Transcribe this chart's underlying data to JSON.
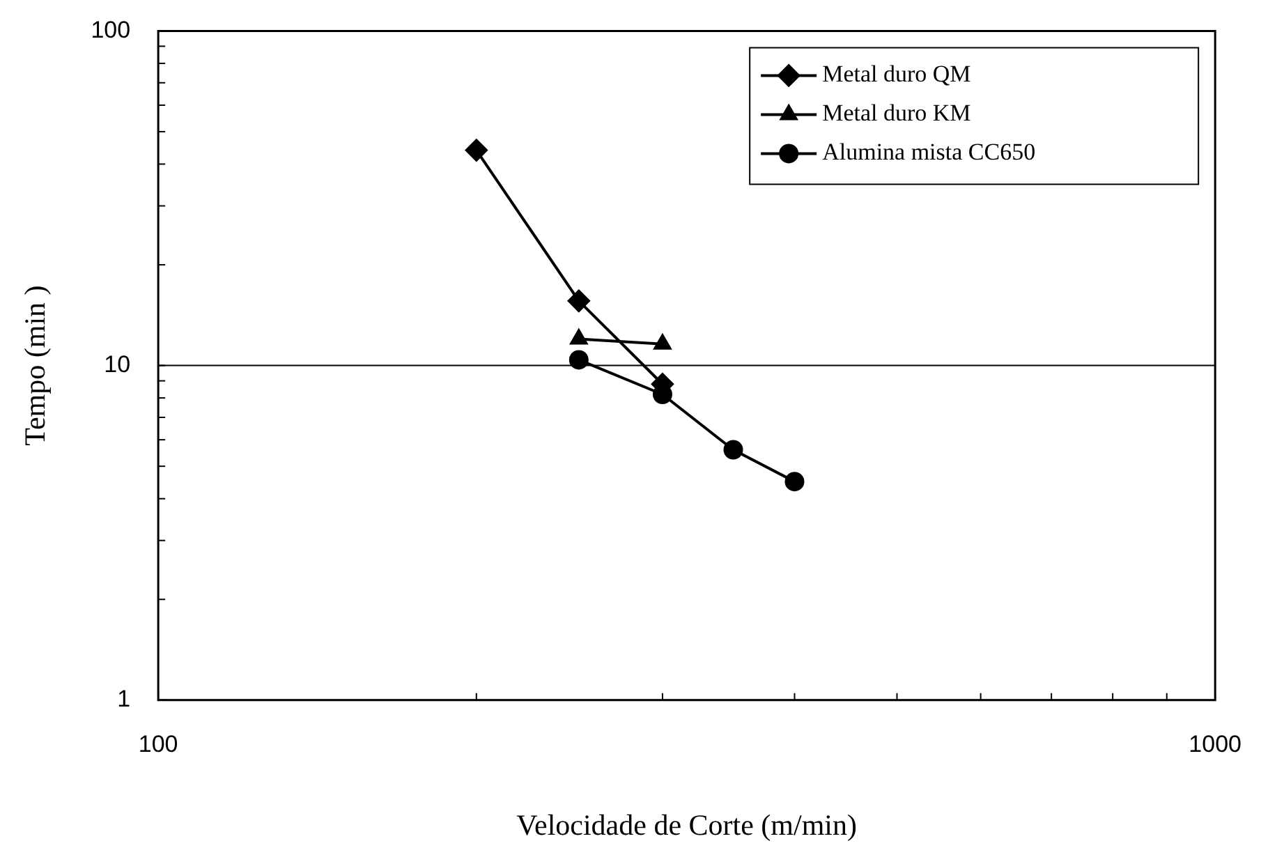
{
  "chart_data": {
    "type": "line",
    "xlabel": "Velocidade de Corte (m/min)",
    "ylabel": "Tempo (min )",
    "log": "xy",
    "xlim": [
      100,
      1000
    ],
    "xticks": [
      100,
      {
        "value": 200,
        "label": null
      },
      {
        "value": 300,
        "label": null
      },
      {
        "value": 400,
        "label": null
      },
      {
        "value": 500,
        "label": null
      },
      {
        "value": 600,
        "label": null
      },
      {
        "value": 700,
        "label": null
      },
      {
        "value": 800,
        "label": null
      },
      {
        "value": 900,
        "label": null
      },
      1000
    ],
    "ylim": [
      1,
      100
    ],
    "yticks": [
      1,
      {
        "value": 2,
        "label": null
      },
      {
        "value": 3,
        "label": null
      },
      {
        "value": 4,
        "label": null
      },
      {
        "value": 5,
        "label": null
      },
      {
        "value": 6,
        "label": null
      },
      {
        "value": 7,
        "label": null
      },
      {
        "value": 8,
        "label": null
      },
      {
        "value": 9,
        "label": null
      },
      10,
      {
        "value": 20,
        "label": null
      },
      {
        "value": 30,
        "label": null
      },
      {
        "value": 40,
        "label": null
      },
      {
        "value": 50,
        "label": null
      },
      {
        "value": 60,
        "label": null
      },
      {
        "value": 70,
        "label": null
      },
      {
        "value": 80,
        "label": null
      },
      {
        "value": 90,
        "label": null
      },
      100
    ],
    "grid": "y",
    "legend": "top right",
    "line_style": "solid",
    "series": [
      {
        "name": "Metal duro QM",
        "color": "#000000",
        "marker": "diamond",
        "x": [
          200,
          250,
          300
        ],
        "values": [
          44,
          15.6,
          8.8
        ]
      },
      {
        "name": "Metal duro KM",
        "color": "#000000",
        "marker": "triangle",
        "x": [
          250,
          300
        ],
        "values": [
          12,
          11.6
        ]
      },
      {
        "name": "Alumina mista CC650",
        "color": "#000000",
        "marker": "circle",
        "x": [
          250,
          300,
          350,
          400
        ],
        "values": [
          10.4,
          8.2,
          5.6,
          4.5
        ]
      }
    ]
  }
}
